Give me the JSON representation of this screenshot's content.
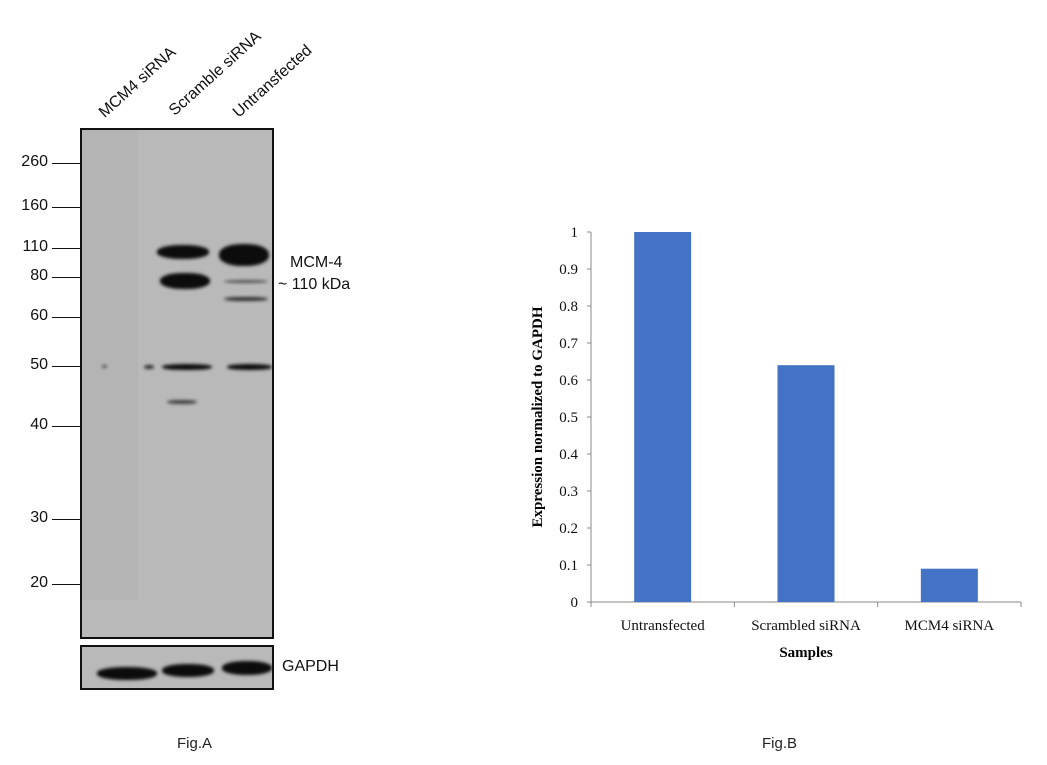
{
  "fig_a": {
    "caption": "Fig.A",
    "lanes": [
      "MCM4 siRNA",
      "Scramble siRNA",
      "Untransfected"
    ],
    "markers": [
      "260",
      "160",
      "110",
      "80",
      "60",
      "50",
      "40",
      "30",
      "20"
    ],
    "target_label": "MCM-4",
    "target_size": "~ 110 kDa",
    "loading_control": "GAPDH"
  },
  "fig_b": {
    "caption": "Fig.B"
  },
  "chart_data": {
    "type": "bar",
    "categories": [
      "Untransfected",
      "Scrambled siRNA",
      "MCM4 siRNA"
    ],
    "values": [
      1.0,
      0.64,
      0.09
    ],
    "xlabel": "Samples",
    "ylabel": "Expression normalized to GAPDH",
    "ylim": [
      0,
      1
    ],
    "yticks": [
      "0",
      "0.1",
      "0.2",
      "0.3",
      "0.4",
      "0.5",
      "0.6",
      "0.7",
      "0.8",
      "0.9",
      "1"
    ],
    "grid": false,
    "bar_color": "#4472C4"
  }
}
